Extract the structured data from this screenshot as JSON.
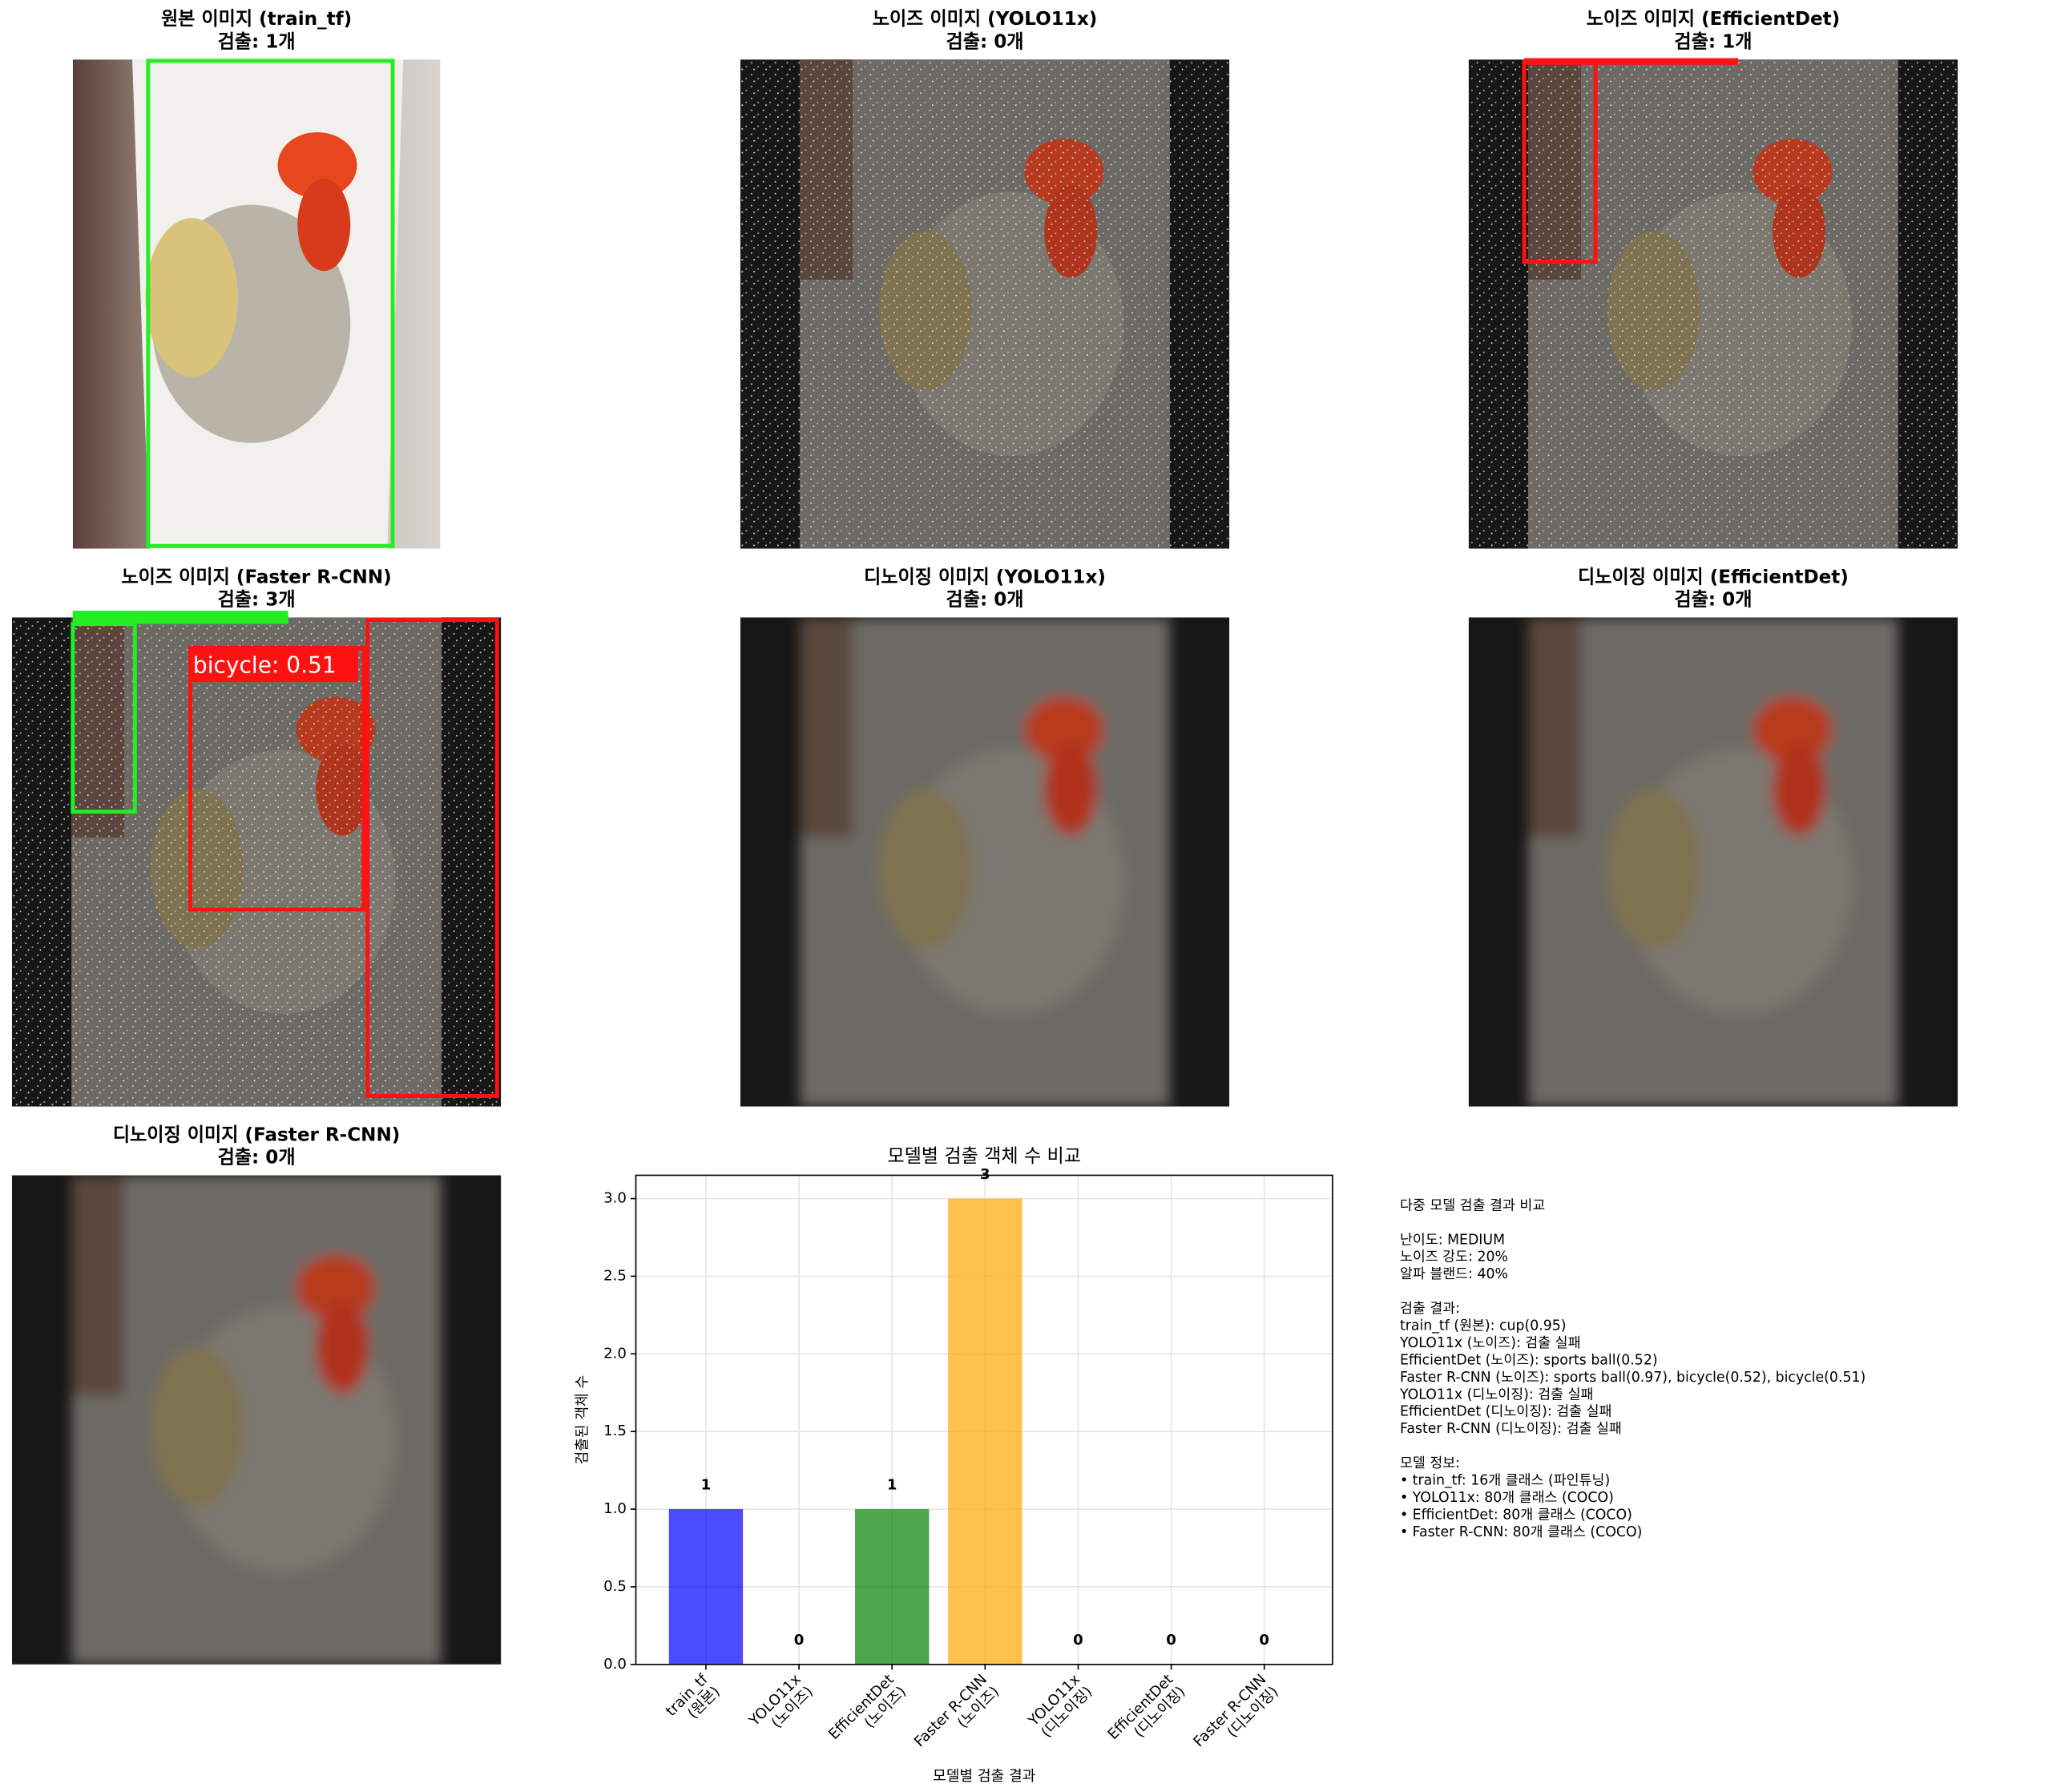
{
  "panels": [
    {
      "title": "원본 이미지 (train_tf)",
      "subtitle": "검출: 1개"
    },
    {
      "title": "노이즈 이미지 (YOLO11x)",
      "subtitle": "검출: 0개"
    },
    {
      "title": "노이즈 이미지 (EfficientDet)",
      "subtitle": "검출: 1개"
    },
    {
      "title": "노이즈 이미지 (Faster R-CNN)",
      "subtitle": "검출: 3개",
      "box_label": "bicycle: 0.51"
    },
    {
      "title": "디노이징 이미지 (YOLO11x)",
      "subtitle": "검출: 0개"
    },
    {
      "title": "디노이징 이미지 (EfficientDet)",
      "subtitle": "검출: 0개"
    },
    {
      "title": "디노이징 이미지 (Faster R-CNN)",
      "subtitle": "검출: 0개"
    }
  ],
  "chart_data": {
    "type": "bar",
    "title": "모델별 검출 객체 수 비교",
    "x_label": "모델별 검출 결과",
    "y_label": "검출된 객체 수",
    "categories": [
      "train_tf\n(원본)",
      "YOLO11x\n(노이즈)",
      "EfficientDet\n(노이즈)",
      "Faster R-CNN\n(노이즈)",
      "YOLO11x\n(디노이징)",
      "EfficientDet\n(디노이징)",
      "Faster R-CNN\n(디노이징)"
    ],
    "values": [
      1,
      0,
      1,
      3,
      0,
      0,
      0
    ],
    "colors": [
      "#0000ff",
      "#ff0000",
      "#008000",
      "#ffa500",
      "#800080",
      "#a52a2a",
      "#ffc0cb"
    ],
    "ylim": [
      0,
      3.15
    ],
    "yticks": [
      {
        "value": 0,
        "label": "0.0"
      },
      {
        "value": 0.5,
        "label": "0.5"
      },
      {
        "value": 1,
        "label": "1.0"
      },
      {
        "value": 1.5,
        "label": "1.5"
      },
      {
        "value": 2,
        "label": "2.0"
      },
      {
        "value": 2.5,
        "label": "2.5"
      },
      {
        "value": 3,
        "label": "3.0"
      }
    ],
    "grid": true
  },
  "info": [
    [
      "다중 모델 검출 결과 비교"
    ],
    [
      "난이도: MEDIUM",
      "노이즈 강도: 20%",
      "알파 블랜드: 40%"
    ],
    [
      "검출 결과:",
      "train_tf (원본): cup(0.95)",
      "YOLO11x (노이즈): 검출 실패",
      "EfficientDet (노이즈): sports ball(0.52)",
      "Faster R-CNN (노이즈): sports ball(0.97), bicycle(0.52), bicycle(0.51)",
      "YOLO11x (디노이징): 검출 실패",
      "EfficientDet (디노이징): 검출 실패",
      "Faster R-CNN (디노이징): 검출 실패"
    ],
    [
      "모델 정보:",
      "• train_tf: 16개 클래스 (파인튜닝)",
      "• YOLO11x: 80개 클래스 (COCO)",
      "• EfficientDet: 80개 클래스 (COCO)",
      "• Faster R-CNN: 80개 클래스 (COCO)"
    ]
  ]
}
